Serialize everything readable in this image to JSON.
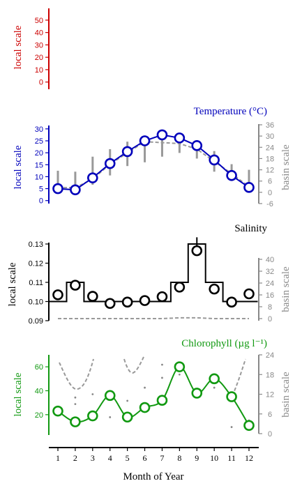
{
  "chart_data": [
    {
      "type": "line",
      "title": "",
      "ylabel": "local scale",
      "y_ticks": [
        0,
        10,
        20,
        30,
        40,
        50
      ],
      "ylim": [
        -3,
        55
      ],
      "color": "#cc0000",
      "series": []
    },
    {
      "type": "line",
      "title": "Temperature (°C)",
      "ylabel": "local scale",
      "y2label": "basin scale",
      "x": [
        1,
        2,
        3,
        4,
        5,
        6,
        7,
        8,
        9,
        10,
        11,
        12
      ],
      "ylim": [
        -3,
        32
      ],
      "y_ticks": [
        0,
        5,
        10,
        15,
        20,
        25,
        30
      ],
      "y2lim": [
        -6,
        36
      ],
      "y2_ticks": [
        -6,
        0,
        6,
        12,
        18,
        24,
        30,
        36
      ],
      "color": "#0000bb",
      "series": [
        {
          "values": [
            5,
            4.5,
            9.5,
            15.5,
            20.5,
            25,
            27.5,
            26.2,
            23,
            17,
            10.5,
            5.5
          ]
        },
        {
          "axis": "y2",
          "style": "dashed",
          "values": [
            2.5,
            2.5,
            7,
            15,
            21,
            27,
            26.5,
            26,
            23,
            16.5,
            10,
            3
          ]
        }
      ],
      "range_bars": [
        [
          1,
          11.5
        ],
        [
          0,
          11
        ],
        [
          4,
          19
        ],
        [
          9,
          23
        ],
        [
          14,
          27
        ],
        [
          16,
          28
        ],
        [
          19,
          28
        ],
        [
          21,
          28
        ],
        [
          18,
          26
        ],
        [
          11,
          22
        ],
        [
          6,
          15
        ],
        [
          0,
          12
        ]
      ]
    },
    {
      "type": "line",
      "title": "Salinity",
      "ylabel": "local scale",
      "y2label": "basin scale",
      "x": [
        1,
        2,
        3,
        4,
        5,
        6,
        7,
        8,
        9,
        10,
        11,
        12
      ],
      "ylim": [
        0.09,
        0.134
      ],
      "y_ticks": [
        0.09,
        0.1,
        0.11,
        0.12,
        0.13
      ],
      "y2lim": [
        0,
        40
      ],
      "y2_ticks": [
        0,
        8,
        16,
        24,
        32,
        40
      ],
      "color": "#000000",
      "series": [
        {
          "values": [
            0.1035,
            0.1085,
            0.1027,
            0.099,
            0.0997,
            0.1005,
            0.1025,
            0.1075,
            0.1265,
            0.1065,
            0.0997,
            0.104
          ]
        },
        {
          "axis": "y2",
          "style": "dashed",
          "values": [
            0,
            0,
            0,
            0,
            0,
            0,
            0,
            0.5,
            0.5,
            0,
            0,
            0
          ]
        }
      ],
      "step_line": [
        0.1,
        0.11,
        0.1,
        0.1,
        0.1,
        0.1,
        0.1,
        0.11,
        0.13,
        0.11,
        0.1,
        0.1
      ]
    },
    {
      "type": "line",
      "title": "Chlorophyll (µg l⁻¹)",
      "ylabel": "local scale",
      "y2label": "basin scale",
      "xlabel": "Month of Year",
      "categories": [
        "1",
        "2",
        "3",
        "4",
        "5",
        "6",
        "7",
        "8",
        "9",
        "10",
        "11",
        "12"
      ],
      "x": [
        1,
        2,
        3,
        4,
        5,
        6,
        7,
        8,
        9,
        10,
        11,
        12
      ],
      "ylim": [
        3,
        70
      ],
      "y_ticks": [
        20,
        40,
        60
      ],
      "y2lim": [
        0,
        24
      ],
      "y2_ticks": [
        0,
        6,
        12,
        18,
        24
      ],
      "color": "#119911",
      "series": [
        {
          "values": [
            23,
            14,
            19,
            36,
            18,
            26,
            32,
            60,
            38,
            50,
            35,
            11
          ]
        },
        {
          "axis": "y2",
          "style": "dashed",
          "values": [
            22,
            14,
            24,
            null,
            24,
            24,
            null,
            null,
            null,
            null,
            null,
            21
          ]
        }
      ]
    }
  ]
}
